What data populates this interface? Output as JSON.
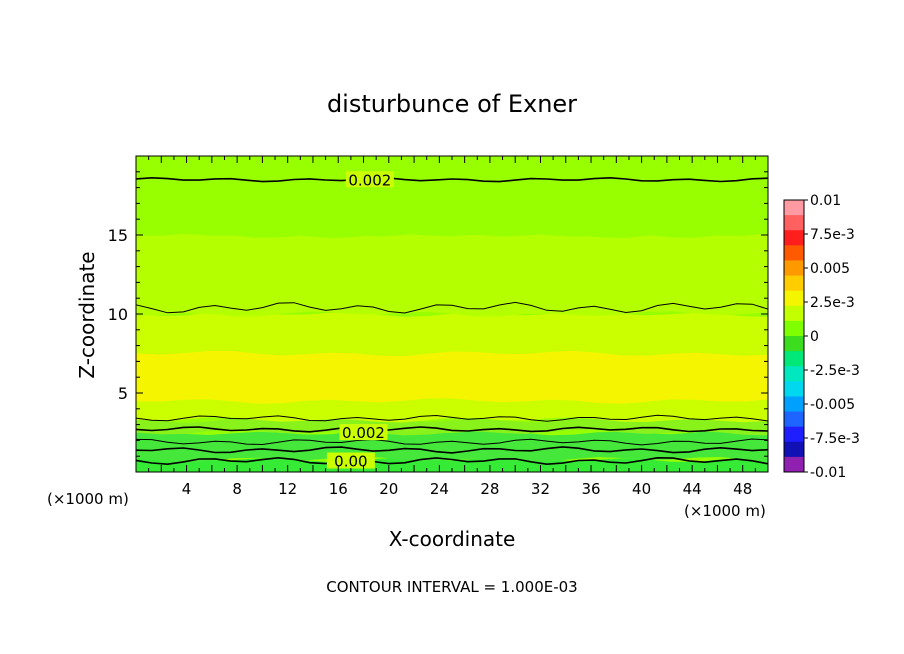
{
  "chart_data": {
    "type": "contour",
    "title": "disturbunce of Exner",
    "xlabel": "X-coordinate",
    "ylabel": "Z-coordinate",
    "x_unit": "(×1000 m)",
    "xlim": [
      0,
      50
    ],
    "ylim": [
      0,
      20
    ],
    "xticks": [
      4,
      8,
      12,
      16,
      20,
      24,
      28,
      32,
      36,
      40,
      44,
      48
    ],
    "yticks": [
      5,
      10,
      15
    ],
    "footer": "CONTOUR INTERVAL = 1.000E-03",
    "contour_labels": [
      {
        "text": "0.002",
        "x": 18.5,
        "z": 18.4
      },
      {
        "text": "0.002",
        "x": 18,
        "z": 2.4
      },
      {
        "text": "0.00",
        "x": 17,
        "z": 0.6
      }
    ],
    "colorbar": {
      "min": -0.01,
      "max": 0.01,
      "labels": [
        "0.01",
        "7.5e-3",
        "0.005",
        "2.5e-3",
        "0",
        "-2.5e-3",
        "-0.005",
        "-7.5e-3",
        "-0.01"
      ],
      "colors": [
        "#ff9aa2",
        "#ff6060",
        "#ff1e1e",
        "#ff5a00",
        "#ff9900",
        "#ffcc00",
        "#f5f500",
        "#c4ff00",
        "#7fff00",
        "#3cdc1e",
        "#00e878",
        "#00e8c0",
        "#00d8f0",
        "#00a0ff",
        "#1e64ff",
        "#1e1eff",
        "#1010b4",
        "#9020b0"
      ]
    },
    "field_bands": [
      {
        "z_range": [
          0,
          0.8
        ],
        "value": 0.0005,
        "color": "#35eb35"
      },
      {
        "z_range": [
          0.8,
          2.5
        ],
        "value": 0.0013,
        "color": "#45e83a"
      },
      {
        "z_range": [
          2.5,
          3.3
        ],
        "value": 0.0022,
        "color": "#88f21a"
      },
      {
        "z_range": [
          3.3,
          10
        ],
        "value": 0.0031,
        "color": "#cbff00"
      },
      {
        "z_range": [
          4.5,
          7.5
        ],
        "value": 0.0041,
        "color": "#f5f500"
      },
      {
        "z_range": [
          10,
          15
        ],
        "value": 0.0027,
        "color": "#b4ff00"
      },
      {
        "z_range": [
          15,
          20
        ],
        "value": 0.0018,
        "color": "#98ff00"
      }
    ]
  }
}
